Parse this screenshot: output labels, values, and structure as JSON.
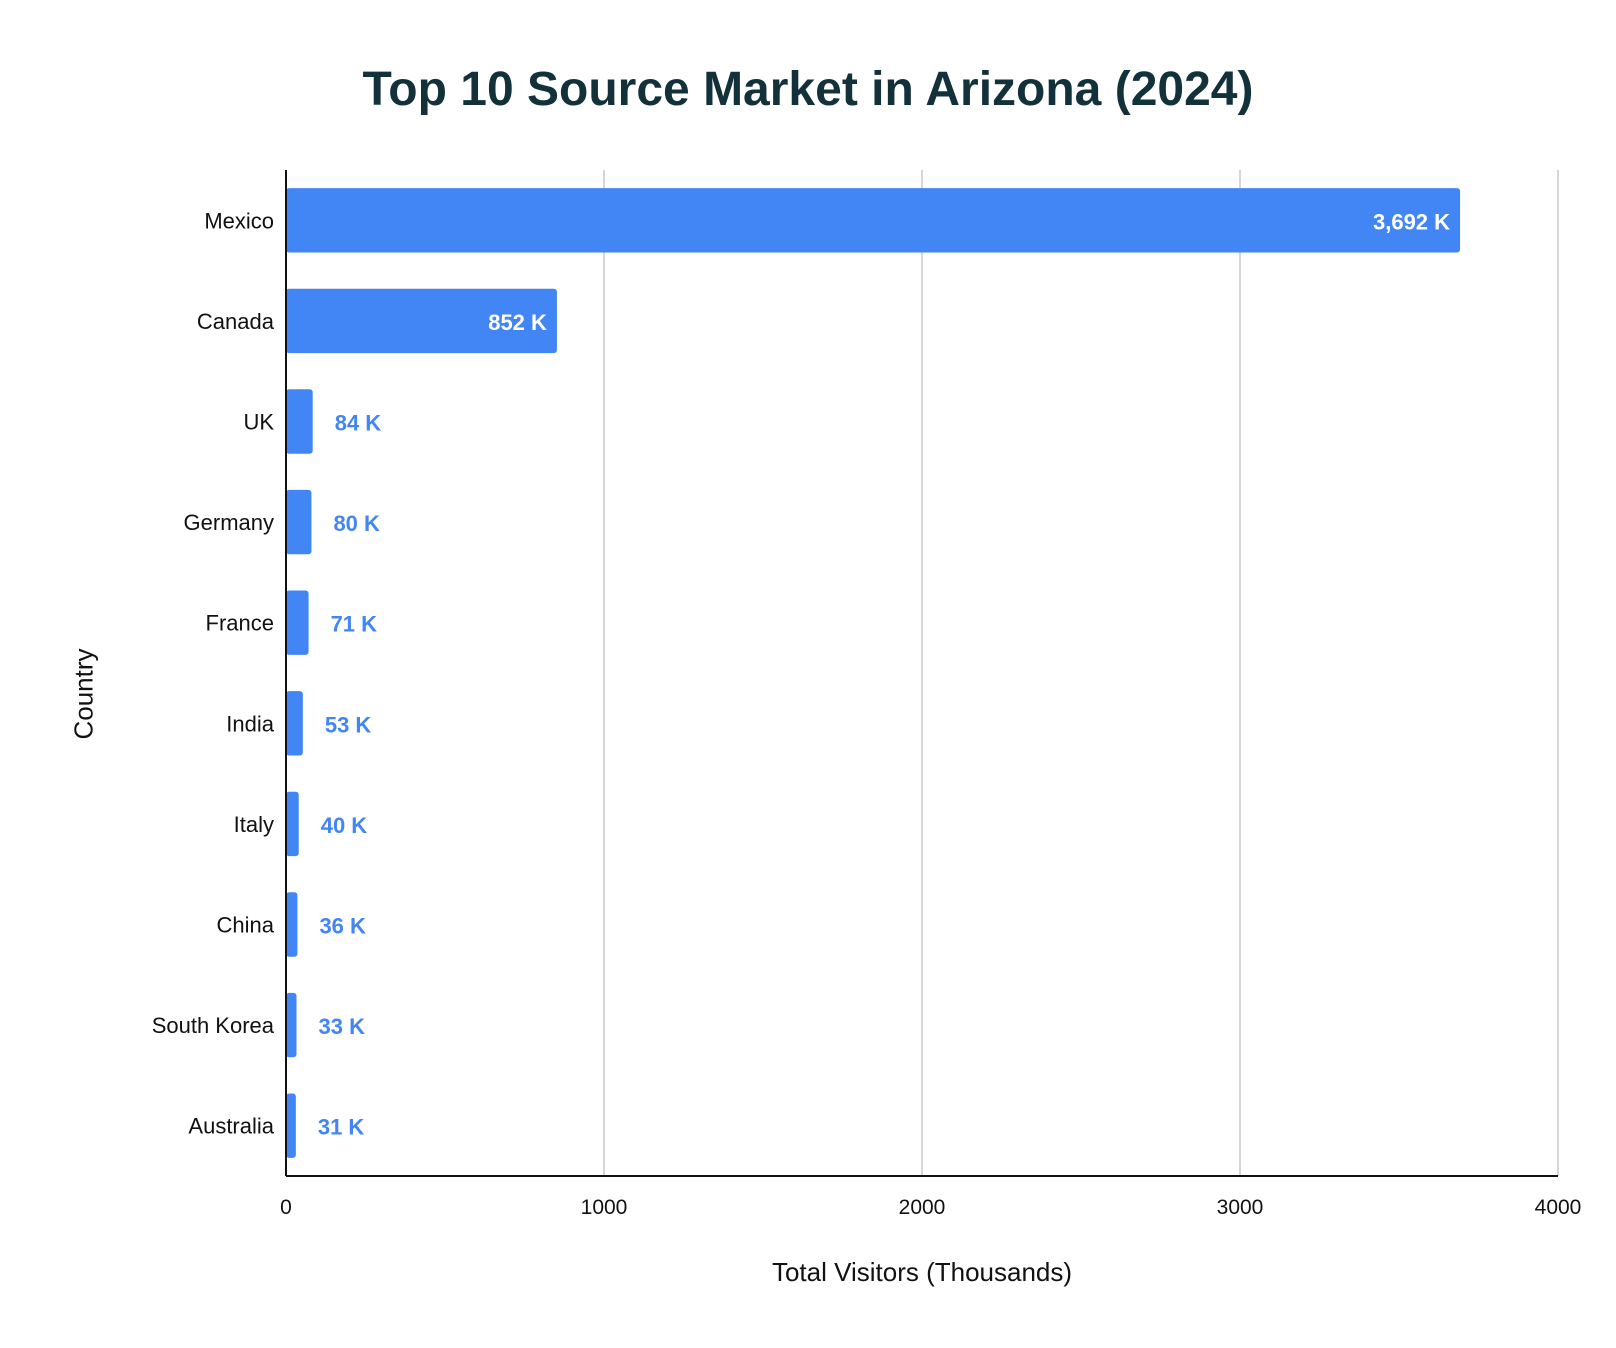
{
  "chart_data": {
    "type": "bar",
    "orientation": "horizontal",
    "title": "Top 10 Source Market in Arizona (2024)",
    "xlabel": "Total Visitors (Thousands)",
    "ylabel": "Country",
    "xlim": [
      0,
      4000
    ],
    "xticks": [
      0,
      1000,
      2000,
      3000,
      4000
    ],
    "grid": true,
    "legend": "none",
    "bar_color": "#4285f4",
    "title_color": "#12313a",
    "categories": [
      "Mexico",
      "Canada",
      "UK",
      "Germany",
      "France",
      "India",
      "Italy",
      "China",
      "South Korea",
      "Australia"
    ],
    "values": [
      3692,
      852,
      84,
      80,
      71,
      53,
      40,
      36,
      33,
      31
    ],
    "data_labels": [
      "3,692 K",
      "852 K",
      "84 K",
      "80 K",
      "71 K",
      "53 K",
      "40 K",
      "36 K",
      "33 K",
      "31 K"
    ]
  }
}
